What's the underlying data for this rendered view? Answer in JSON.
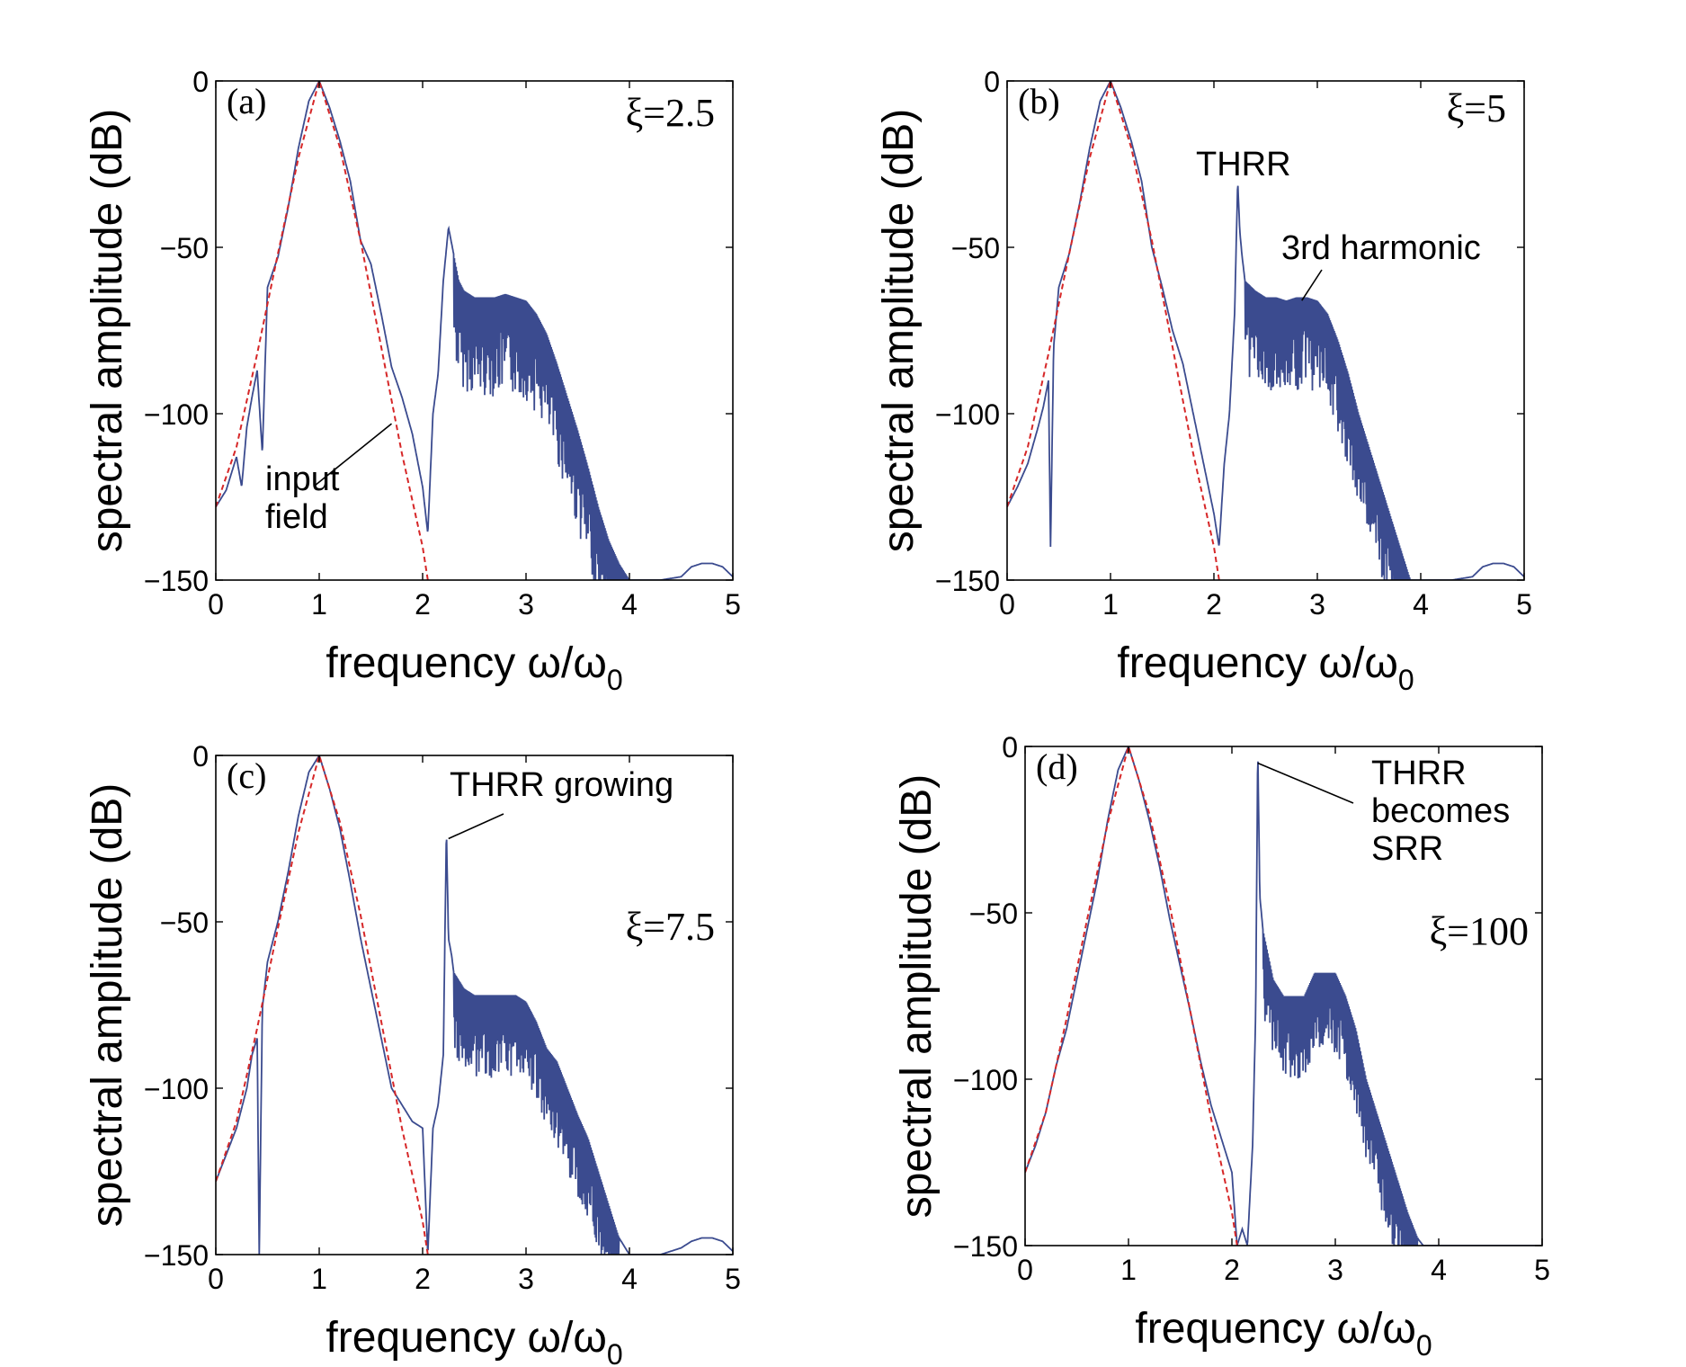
{
  "colors": {
    "spectrum": "#3b4b8f",
    "input": "#d62728",
    "axis": "#000000",
    "background": "#ffffff"
  },
  "chart_data": [
    {
      "id": "a",
      "type": "line",
      "panel_label": "(a)",
      "param_label": "ξ=2.5",
      "xlabel": "frequency ω/ω",
      "xlabel_sub": "0",
      "ylabel": "spectral amplitude (dB)",
      "xlim": [
        0,
        5
      ],
      "ylim": [
        -150,
        0
      ],
      "xticks": [
        "0",
        "1",
        "2",
        "3",
        "4",
        "5"
      ],
      "yticks": [
        "0",
        "−50",
        "−100",
        "−150"
      ],
      "annotations": [
        {
          "text": "input",
          "text2": "field",
          "target": [
            1.7,
            -103
          ]
        }
      ],
      "series": [
        {
          "name": "spectrum",
          "style": "solid",
          "x": [
            0,
            0.1,
            0.2,
            0.25,
            0.3,
            0.35,
            0.4,
            0.45,
            0.5,
            0.6,
            0.7,
            0.8,
            0.9,
            1.0,
            1.1,
            1.2,
            1.3,
            1.4,
            1.5,
            1.6,
            1.7,
            1.8,
            1.9,
            2.0,
            2.05,
            2.1,
            2.15,
            2.2,
            2.25,
            2.3,
            2.35,
            2.4,
            2.5,
            2.6,
            2.7,
            2.8,
            2.9,
            3.0,
            3.1,
            3.2,
            3.3,
            3.4,
            3.5,
            3.6,
            3.7,
            3.8,
            3.9,
            4.0,
            4.3,
            4.5,
            4.6,
            4.7,
            4.8,
            4.9,
            5.0
          ],
          "y": [
            -128,
            -123,
            -113,
            -122,
            -104,
            -95,
            -87,
            -112,
            -62,
            -53,
            -38,
            -20,
            -6,
            0,
            -8,
            -18,
            -30,
            -48,
            -55,
            -70,
            -86,
            -95,
            -106,
            -122,
            -136,
            -100,
            -88,
            -60,
            -44,
            -52,
            -60,
            -63,
            -65,
            -65,
            -65,
            -64,
            -65,
            -66,
            -70,
            -76,
            -85,
            -95,
            -105,
            -116,
            -128,
            -138,
            -145,
            -150,
            -150,
            -149,
            -146,
            -145,
            -145,
            -146,
            -149
          ],
          "osc_range": [
            2.3,
            4.0
          ],
          "osc_amplitude": 30
        },
        {
          "name": "input field",
          "style": "dashed",
          "x": [
            0,
            0.2,
            0.4,
            0.6,
            0.8,
            1.0,
            1.2,
            1.4,
            1.6,
            1.8,
            2.0,
            2.05
          ],
          "y": [
            -128,
            -110,
            -82,
            -52,
            -23,
            0,
            -20,
            -48,
            -80,
            -112,
            -140,
            -150
          ]
        }
      ]
    },
    {
      "id": "b",
      "type": "line",
      "panel_label": "(b)",
      "param_label": "ξ=5",
      "xlabel": "frequency ω/ω",
      "xlabel_sub": "0",
      "ylabel": "spectral amplitude (dB)",
      "xlim": [
        0,
        5
      ],
      "ylim": [
        -150,
        0
      ],
      "xticks": [
        "0",
        "1",
        "2",
        "3",
        "4",
        "5"
      ],
      "yticks": [
        "0",
        "−50",
        "−100",
        "−150"
      ],
      "annotations": [
        {
          "text": "THRR",
          "target": null
        },
        {
          "text": "3rd harmonic",
          "target": [
            2.85,
            -66
          ]
        }
      ],
      "series": [
        {
          "name": "spectrum",
          "style": "solid",
          "x": [
            0,
            0.1,
            0.2,
            0.3,
            0.35,
            0.4,
            0.42,
            0.45,
            0.5,
            0.6,
            0.7,
            0.8,
            0.9,
            1.0,
            1.1,
            1.2,
            1.3,
            1.4,
            1.5,
            1.6,
            1.7,
            1.8,
            1.9,
            2.0,
            2.05,
            2.1,
            2.15,
            2.2,
            2.23,
            2.25,
            2.27,
            2.3,
            2.4,
            2.5,
            2.6,
            2.7,
            2.8,
            2.9,
            3.0,
            3.1,
            3.2,
            3.3,
            3.4,
            3.5,
            3.6,
            3.7,
            3.8,
            3.9,
            4.0,
            4.3,
            4.5,
            4.6,
            4.7,
            4.8,
            4.9,
            5.0
          ],
          "y": [
            -128,
            -122,
            -115,
            -104,
            -98,
            -90,
            -140,
            -80,
            -62,
            -52,
            -37,
            -20,
            -6,
            0,
            -8,
            -18,
            -30,
            -50,
            -62,
            -75,
            -85,
            -100,
            -115,
            -130,
            -140,
            -115,
            -100,
            -70,
            -30,
            -45,
            -52,
            -60,
            -63,
            -65,
            -65,
            -66,
            -65,
            -65,
            -66,
            -70,
            -78,
            -88,
            -100,
            -110,
            -120,
            -130,
            -140,
            -150,
            -152,
            -150,
            -149,
            -146,
            -145,
            -145,
            -146,
            -149
          ],
          "osc_range": [
            2.3,
            3.9
          ],
          "osc_amplitude": 28
        },
        {
          "name": "input field",
          "style": "dashed",
          "x": [
            0,
            0.2,
            0.4,
            0.6,
            0.8,
            1.0,
            1.2,
            1.4,
            1.6,
            1.8,
            2.0,
            2.05
          ],
          "y": [
            -128,
            -110,
            -82,
            -52,
            -23,
            0,
            -20,
            -48,
            -80,
            -112,
            -140,
            -150
          ]
        }
      ]
    },
    {
      "id": "c",
      "type": "line",
      "panel_label": "(c)",
      "param_label": "ξ=7.5",
      "xlabel": "frequency ω/ω",
      "xlabel_sub": "0",
      "ylabel": "spectral amplitude (dB)",
      "xlim": [
        0,
        5
      ],
      "ylim": [
        -150,
        0
      ],
      "xticks": [
        "0",
        "1",
        "2",
        "3",
        "4",
        "5"
      ],
      "yticks": [
        "0",
        "−50",
        "−100",
        "−150"
      ],
      "annotations": [
        {
          "text": "THRR growing",
          "target": [
            2.25,
            -25
          ]
        }
      ],
      "series": [
        {
          "name": "spectrum",
          "style": "solid",
          "x": [
            0,
            0.1,
            0.2,
            0.3,
            0.35,
            0.4,
            0.42,
            0.45,
            0.5,
            0.6,
            0.7,
            0.8,
            0.9,
            1.0,
            1.1,
            1.2,
            1.3,
            1.4,
            1.5,
            1.6,
            1.7,
            1.8,
            1.9,
            2.0,
            2.05,
            2.1,
            2.15,
            2.2,
            2.23,
            2.25,
            2.28,
            2.3,
            2.4,
            2.5,
            2.6,
            2.7,
            2.8,
            2.9,
            3.0,
            3.1,
            3.2,
            3.3,
            3.4,
            3.5,
            3.6,
            3.7,
            3.8,
            3.9,
            4.0,
            4.3,
            4.5,
            4.6,
            4.7,
            4.8,
            4.9,
            5.0
          ],
          "y": [
            -128,
            -120,
            -112,
            -100,
            -90,
            -85,
            -150,
            -76,
            -62,
            -50,
            -35,
            -18,
            -5,
            0,
            -10,
            -22,
            -38,
            -55,
            -70,
            -85,
            -100,
            -105,
            -110,
            -112,
            -150,
            -112,
            -105,
            -90,
            -22,
            -55,
            -60,
            -65,
            -70,
            -72,
            -72,
            -72,
            -72,
            -72,
            -74,
            -80,
            -88,
            -92,
            -100,
            -108,
            -115,
            -125,
            -135,
            -145,
            -150,
            -150,
            -148,
            -146,
            -145,
            -145,
            -146,
            -149
          ],
          "osc_range": [
            2.3,
            3.9
          ],
          "osc_amplitude": 25
        },
        {
          "name": "input field",
          "style": "dashed",
          "x": [
            0,
            0.2,
            0.4,
            0.6,
            0.8,
            1.0,
            1.2,
            1.4,
            1.6,
            1.8,
            2.0,
            2.05
          ],
          "y": [
            -128,
            -110,
            -82,
            -52,
            -23,
            0,
            -20,
            -48,
            -80,
            -112,
            -140,
            -150
          ]
        }
      ]
    },
    {
      "id": "d",
      "type": "line",
      "panel_label": "(d)",
      "param_label": "ξ=100",
      "xlabel": "frequency ω/ω",
      "xlabel_sub": "0",
      "ylabel": "spectral amplitude (dB)",
      "xlim": [
        0,
        5
      ],
      "ylim": [
        -150,
        0
      ],
      "xticks": [
        "0",
        "1",
        "2",
        "3",
        "4",
        "5"
      ],
      "yticks": [
        "0",
        "−50",
        "−100",
        "−150"
      ],
      "annotations": [
        {
          "text": "THRR",
          "text2": "becomes",
          "text3": "SRR",
          "target": [
            2.25,
            -5
          ]
        }
      ],
      "series": [
        {
          "name": "spectrum",
          "style": "solid",
          "x": [
            0,
            0.1,
            0.2,
            0.3,
            0.4,
            0.5,
            0.6,
            0.7,
            0.8,
            0.9,
            1.0,
            1.1,
            1.2,
            1.3,
            1.4,
            1.5,
            1.6,
            1.7,
            1.8,
            1.9,
            2.0,
            2.05,
            2.1,
            2.15,
            2.2,
            2.23,
            2.25,
            2.27,
            2.3,
            2.4,
            2.5,
            2.6,
            2.7,
            2.8,
            2.9,
            3.0,
            3.1,
            3.2,
            3.3,
            3.4,
            3.5,
            3.6,
            3.7,
            3.8,
            3.9,
            4.0,
            4.5,
            4.7,
            4.9,
            5.0
          ],
          "y": [
            -128,
            -120,
            -110,
            -96,
            -85,
            -70,
            -55,
            -40,
            -22,
            -7,
            0,
            -10,
            -22,
            -36,
            -52,
            -66,
            -80,
            -95,
            -108,
            -118,
            -128,
            -150,
            -145,
            -150,
            -120,
            -80,
            0,
            -45,
            -55,
            -70,
            -75,
            -75,
            -75,
            -68,
            -68,
            -68,
            -75,
            -85,
            -100,
            -110,
            -120,
            -130,
            -140,
            -148,
            -152,
            -152,
            -150,
            -150,
            -150,
            -150
          ],
          "osc_range": [
            2.3,
            3.8
          ],
          "osc_amplitude": 25
        },
        {
          "name": "input field",
          "style": "dashed",
          "x": [
            0,
            0.2,
            0.4,
            0.6,
            0.8,
            1.0,
            1.2,
            1.4,
            1.6,
            1.8,
            2.0,
            2.05
          ],
          "y": [
            -128,
            -110,
            -82,
            -52,
            -23,
            0,
            -20,
            -48,
            -80,
            -112,
            -140,
            -150
          ]
        }
      ]
    }
  ]
}
